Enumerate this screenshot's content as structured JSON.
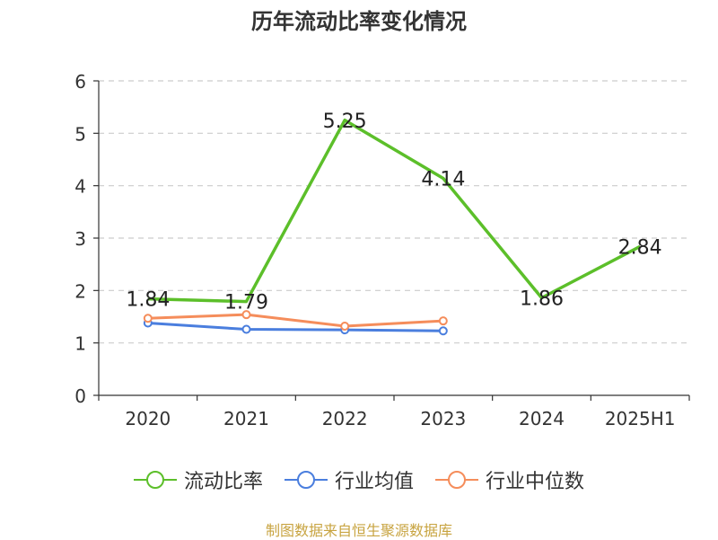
{
  "title": "历年流动比率变化情况",
  "source": "制图数据来自恒生聚源数据库",
  "chart_data": {
    "type": "line",
    "categories": [
      "2020",
      "2021",
      "2022",
      "2023",
      "2024",
      "2025H1"
    ],
    "ylim": [
      0,
      6
    ],
    "yticks": [
      0,
      1,
      2,
      3,
      4,
      5,
      6
    ],
    "grid": true,
    "legend_position": "bottom",
    "series": [
      {
        "name": "流动比率",
        "color": "#5cbf2a",
        "values": [
          1.84,
          1.79,
          5.25,
          4.14,
          1.86,
          2.84
        ],
        "labels": [
          "1.84",
          "1.79",
          "5.25",
          "4.14",
          "1.86",
          "2.84"
        ]
      },
      {
        "name": "行业均值",
        "color": "#4a7ede",
        "values": [
          1.38,
          1.26,
          1.25,
          1.23,
          null,
          null
        ]
      },
      {
        "name": "行业中位数",
        "color": "#f58d5b",
        "values": [
          1.47,
          1.54,
          1.32,
          1.42,
          null,
          null
        ]
      }
    ]
  }
}
